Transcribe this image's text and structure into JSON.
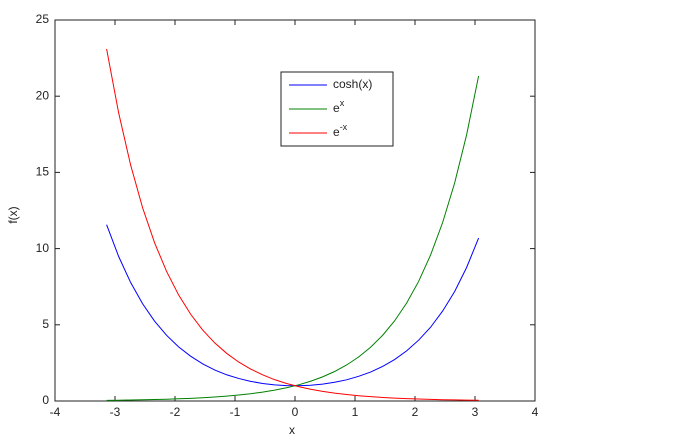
{
  "chart_data": {
    "type": "line",
    "x_label": "x",
    "y_label": "f(x)",
    "x": [
      -3.14,
      -2.94,
      -2.74,
      -2.54,
      -2.34,
      -2.14,
      -1.94,
      -1.74,
      -1.54,
      -1.34,
      -1.14,
      -0.94,
      -0.74,
      -0.54,
      -0.34,
      -0.14,
      0.06,
      0.26,
      0.46,
      0.66,
      0.86,
      1.06,
      1.26,
      1.46,
      1.66,
      1.86,
      2.06,
      2.26,
      2.46,
      2.66,
      2.86,
      3.06
    ],
    "series": [
      {
        "name": "cosh(x)",
        "color": "#0000ff",
        "values": [
          11.57,
          9.49,
          7.78,
          6.38,
          5.24,
          4.31,
          3.55,
          2.94,
          2.44,
          2.04,
          1.72,
          1.48,
          1.29,
          1.15,
          1.06,
          1.01,
          1.0,
          1.03,
          1.11,
          1.23,
          1.39,
          1.62,
          1.9,
          2.27,
          2.72,
          3.29,
          3.99,
          4.84,
          5.9,
          7.18,
          8.76,
          10.69
        ]
      },
      {
        "name": "e^x",
        "color": "#008000",
        "values": [
          0.043,
          0.053,
          0.065,
          0.079,
          0.096,
          0.118,
          0.144,
          0.176,
          0.214,
          0.262,
          0.32,
          0.391,
          0.477,
          0.583,
          0.712,
          0.869,
          1.062,
          1.297,
          1.584,
          1.935,
          2.363,
          2.886,
          3.525,
          4.306,
          5.259,
          6.424,
          7.846,
          9.583,
          11.705,
          14.296,
          17.462,
          21.328
        ]
      },
      {
        "name": "e^-x",
        "color": "#ff0000",
        "values": [
          23.1,
          18.92,
          15.49,
          12.68,
          10.38,
          8.5,
          6.96,
          5.7,
          4.66,
          3.82,
          3.13,
          2.56,
          2.1,
          1.72,
          1.4,
          1.15,
          0.942,
          0.771,
          0.631,
          0.517,
          0.423,
          0.346,
          0.284,
          0.232,
          0.19,
          0.156,
          0.127,
          0.104,
          0.085,
          0.07,
          0.057,
          0.047
        ]
      }
    ],
    "xlim": [
      -4,
      4
    ],
    "xticks": [
      -4,
      -3,
      -2,
      -1,
      0,
      1,
      2,
      3,
      4
    ],
    "ylim": [
      0,
      25
    ],
    "yticks": [
      0,
      5,
      10,
      15,
      20,
      25
    ],
    "grid": false,
    "legend": "top-right-inner"
  }
}
